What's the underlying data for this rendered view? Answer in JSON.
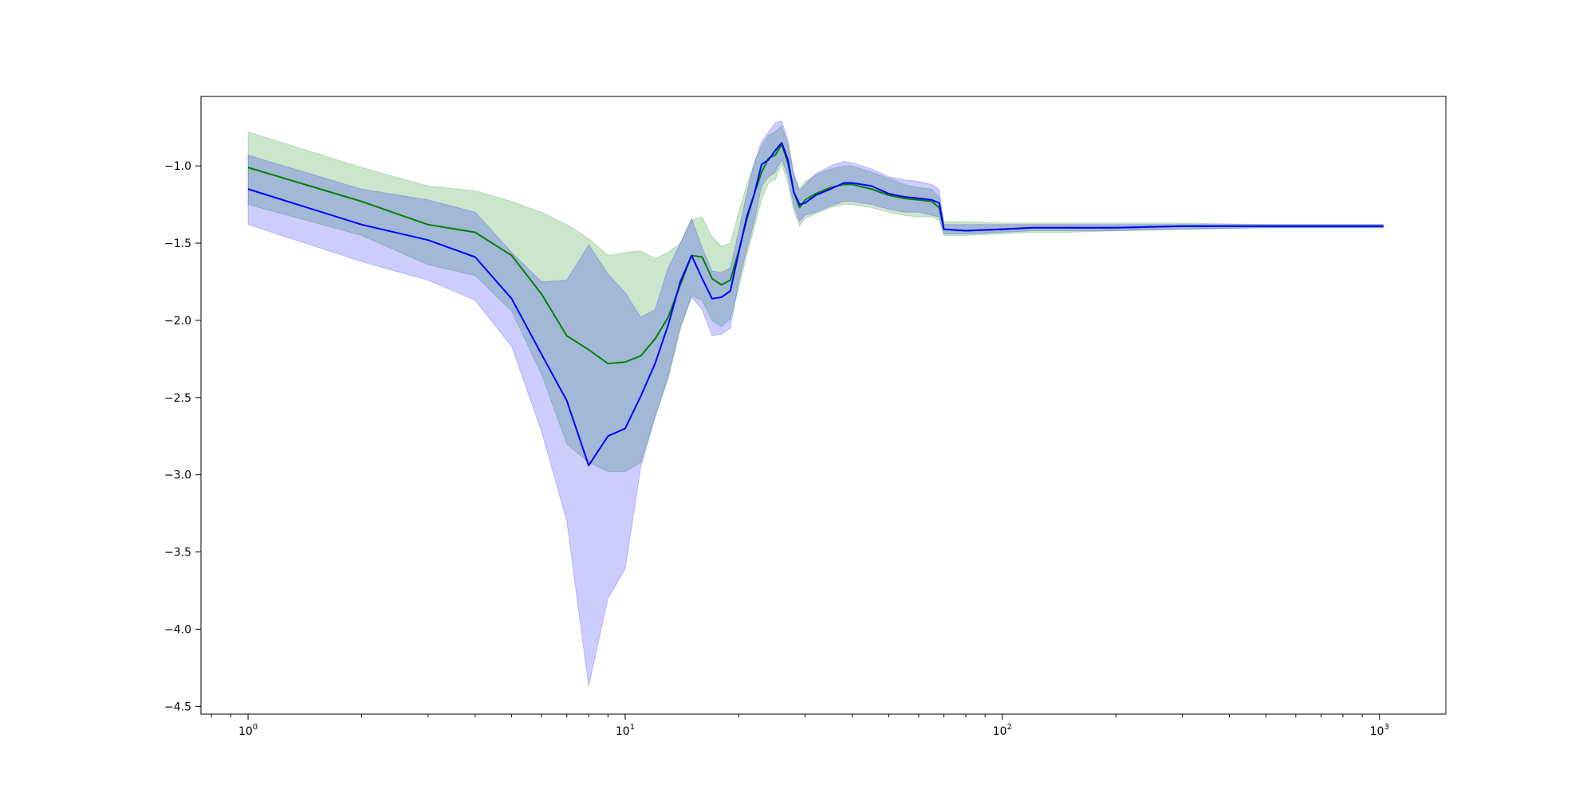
{
  "chart_data": {
    "type": "line",
    "title": "",
    "xlabel": "",
    "ylabel": "",
    "x_scale": "log",
    "xlim": [
      0.75,
      1500
    ],
    "ylim": [
      -4.55,
      -0.55
    ],
    "grid": false,
    "legend": "none",
    "x_ticks": [
      {
        "value": 1,
        "base": "10",
        "exp": "0"
      },
      {
        "value": 10,
        "base": "10",
        "exp": "1"
      },
      {
        "value": 100,
        "base": "10",
        "exp": "2"
      },
      {
        "value": 1000,
        "base": "10",
        "exp": "3"
      }
    ],
    "y_ticks": [
      {
        "value": -1.0,
        "label": "−1.0"
      },
      {
        "value": -1.5,
        "label": "−1.5"
      },
      {
        "value": -2.0,
        "label": "−2.0"
      },
      {
        "value": -2.5,
        "label": "−2.5"
      },
      {
        "value": -3.0,
        "label": "−3.0"
      },
      {
        "value": -3.5,
        "label": "−3.5"
      },
      {
        "value": -4.0,
        "label": "−4.0"
      },
      {
        "value": -4.5,
        "label": "−4.5"
      }
    ],
    "series": [
      {
        "color": "#008000",
        "band_color": "#008000",
        "band_opacity": 0.2,
        "x": [
          1,
          2,
          3,
          4,
          5,
          6,
          7,
          8,
          9,
          10,
          11,
          12,
          13,
          14,
          15,
          16,
          17,
          18,
          19,
          20,
          21,
          22,
          23,
          24,
          25,
          26,
          27,
          28,
          29,
          30,
          32,
          35,
          38,
          40,
          45,
          50,
          55,
          60,
          65,
          68,
          70,
          80,
          100,
          120,
          150,
          200,
          300,
          500,
          700,
          1024
        ],
        "y": [
          -1.01,
          -1.23,
          -1.38,
          -1.43,
          -1.58,
          -1.83,
          -2.1,
          -2.19,
          -2.28,
          -2.27,
          -2.23,
          -2.12,
          -1.98,
          -1.77,
          -1.58,
          -1.59,
          -1.73,
          -1.77,
          -1.74,
          -1.55,
          -1.35,
          -1.18,
          -1.04,
          -0.95,
          -0.93,
          -0.86,
          -0.98,
          -1.17,
          -1.27,
          -1.22,
          -1.18,
          -1.14,
          -1.12,
          -1.12,
          -1.15,
          -1.19,
          -1.21,
          -1.22,
          -1.23,
          -1.27,
          -1.41,
          -1.42,
          -1.41,
          -1.4,
          -1.4,
          -1.4,
          -1.39,
          -1.39,
          -1.39,
          -1.39
        ],
        "upper": [
          -0.78,
          -1.01,
          -1.13,
          -1.16,
          -1.23,
          -1.3,
          -1.38,
          -1.47,
          -1.58,
          -1.56,
          -1.55,
          -1.6,
          -1.56,
          -1.5,
          -1.35,
          -1.33,
          -1.46,
          -1.52,
          -1.5,
          -1.3,
          -1.12,
          -0.98,
          -0.87,
          -0.8,
          -0.78,
          -0.74,
          -0.86,
          -1.05,
          -1.15,
          -1.1,
          -1.06,
          -1.02,
          -1.0,
          -1.0,
          -1.04,
          -1.08,
          -1.12,
          -1.14,
          -1.15,
          -1.2,
          -1.36,
          -1.36,
          -1.37,
          -1.37,
          -1.37,
          -1.37,
          -1.37,
          -1.38,
          -1.38,
          -1.38
        ],
        "lower": [
          -1.25,
          -1.45,
          -1.64,
          -1.71,
          -1.94,
          -2.35,
          -2.8,
          -2.92,
          -2.98,
          -2.98,
          -2.92,
          -2.62,
          -2.38,
          -2.06,
          -1.84,
          -1.87,
          -2.0,
          -2.04,
          -1.99,
          -1.79,
          -1.58,
          -1.4,
          -1.22,
          -1.11,
          -1.09,
          -0.99,
          -1.11,
          -1.29,
          -1.39,
          -1.34,
          -1.31,
          -1.27,
          -1.25,
          -1.25,
          -1.27,
          -1.3,
          -1.32,
          -1.33,
          -1.33,
          -1.35,
          -1.45,
          -1.45,
          -1.44,
          -1.43,
          -1.43,
          -1.42,
          -1.41,
          -1.4,
          -1.4,
          -1.4
        ]
      },
      {
        "color": "#0000ff",
        "band_color": "#0000ff",
        "band_opacity": 0.2,
        "x": [
          1,
          2,
          3,
          4,
          5,
          6,
          7,
          8,
          9,
          10,
          11,
          12,
          13,
          14,
          15,
          16,
          17,
          18,
          19,
          20,
          21,
          22,
          23,
          24,
          25,
          26,
          27,
          28,
          29,
          30,
          32,
          35,
          38,
          40,
          45,
          50,
          55,
          60,
          65,
          68,
          70,
          80,
          100,
          120,
          150,
          200,
          300,
          500,
          700,
          1024
        ],
        "y": [
          -1.15,
          -1.38,
          -1.48,
          -1.59,
          -1.86,
          -2.22,
          -2.52,
          -2.94,
          -2.75,
          -2.7,
          -2.49,
          -2.28,
          -2.03,
          -1.75,
          -1.58,
          -1.73,
          -1.86,
          -1.85,
          -1.81,
          -1.56,
          -1.33,
          -1.18,
          -0.99,
          -0.96,
          -0.9,
          -0.85,
          -0.96,
          -1.17,
          -1.25,
          -1.24,
          -1.19,
          -1.15,
          -1.11,
          -1.11,
          -1.13,
          -1.18,
          -1.2,
          -1.21,
          -1.22,
          -1.24,
          -1.41,
          -1.42,
          -1.41,
          -1.4,
          -1.4,
          -1.4,
          -1.39,
          -1.39,
          -1.39,
          -1.39
        ],
        "upper": [
          -0.93,
          -1.15,
          -1.22,
          -1.3,
          -1.56,
          -1.75,
          -1.74,
          -1.51,
          -1.7,
          -1.82,
          -1.98,
          -1.93,
          -1.66,
          -1.5,
          -1.34,
          -1.53,
          -1.68,
          -1.69,
          -1.66,
          -1.42,
          -1.18,
          -0.98,
          -0.84,
          -0.78,
          -0.72,
          -0.71,
          -0.83,
          -1.06,
          -1.16,
          -1.12,
          -1.05,
          -1.0,
          -0.97,
          -0.98,
          -1.02,
          -1.07,
          -1.09,
          -1.1,
          -1.12,
          -1.15,
          -1.38,
          -1.38,
          -1.38,
          -1.38,
          -1.38,
          -1.38,
          -1.38,
          -1.38,
          -1.38,
          -1.38
        ],
        "lower": [
          -1.38,
          -1.62,
          -1.74,
          -1.87,
          -2.17,
          -2.72,
          -3.3,
          -4.37,
          -3.8,
          -3.61,
          -2.95,
          -2.63,
          -2.36,
          -2.04,
          -1.85,
          -1.93,
          -2.1,
          -2.09,
          -2.05,
          -1.75,
          -1.54,
          -1.36,
          -1.13,
          -1.07,
          -1.04,
          -0.96,
          -1.06,
          -1.26,
          -1.36,
          -1.32,
          -1.3,
          -1.26,
          -1.23,
          -1.23,
          -1.25,
          -1.28,
          -1.3,
          -1.3,
          -1.32,
          -1.33,
          -1.44,
          -1.44,
          -1.43,
          -1.42,
          -1.42,
          -1.42,
          -1.41,
          -1.4,
          -1.4,
          -1.4
        ]
      }
    ]
  }
}
